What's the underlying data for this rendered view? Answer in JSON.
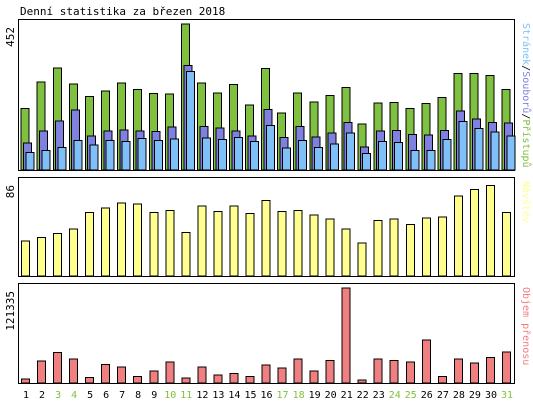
{
  "title": "Denní statistika za březen 2018",
  "colors": {
    "pristupy": "#80c040",
    "soubory": "#8080e0",
    "stranky": "#80c0f8",
    "navstevy": "#ffff90",
    "prenos": "#f08080",
    "weekend_day": "#80c040",
    "axis_text": "#000000",
    "frame": "#000000"
  },
  "chart_data": [
    {
      "type": "bar",
      "panel": "hits",
      "ylabel": "452",
      "ymax": 452,
      "legend": [
        {
          "name": "Stránek",
          "color": "#80c0f8"
        },
        {
          "name": "/",
          "color": "#000000"
        },
        {
          "name": "Souborů",
          "color": "#8080e0"
        },
        {
          "name": "/",
          "color": "#000000"
        },
        {
          "name": "Přístupů",
          "color": "#80c040"
        }
      ],
      "categories": [
        "1",
        "2",
        "3",
        "4",
        "5",
        "6",
        "7",
        "8",
        "9",
        "10",
        "11",
        "12",
        "13",
        "14",
        "15",
        "16",
        "17",
        "18",
        "19",
        "20",
        "21",
        "22",
        "23",
        "24",
        "25",
        "26",
        "27",
        "28",
        "29",
        "30",
        "31"
      ],
      "series": [
        {
          "name": "Přístupů",
          "values": [
            190,
            273,
            316,
            266,
            227,
            245,
            269,
            249,
            237,
            236,
            452,
            270,
            238,
            264,
            202,
            314,
            177,
            238,
            210,
            230,
            255,
            142,
            208,
            209,
            191,
            206,
            225,
            299,
            299,
            292,
            249
          ]
        },
        {
          "name": "Souborů",
          "values": [
            84,
            120,
            152,
            185,
            106,
            120,
            124,
            120,
            119,
            133,
            324,
            134,
            130,
            120,
            105,
            187,
            101,
            134,
            102,
            115,
            147,
            71,
            120,
            123,
            110,
            108,
            122,
            183,
            158,
            147,
            145
          ]
        },
        {
          "name": "Stránek",
          "values": [
            54,
            61,
            69,
            92,
            78,
            92,
            89,
            97,
            92,
            96,
            305,
            99,
            95,
            100,
            88,
            138,
            68,
            92,
            69,
            80,
            114,
            51,
            88,
            85,
            61,
            60,
            94,
            150,
            129,
            117,
            105
          ]
        }
      ]
    },
    {
      "type": "bar",
      "panel": "visits",
      "ylabel": "86",
      "ymax": 86,
      "legend": [
        {
          "name": "Návštěv",
          "color": "#ffff90"
        }
      ],
      "categories": [
        "1",
        "2",
        "3",
        "4",
        "5",
        "6",
        "7",
        "8",
        "9",
        "10",
        "11",
        "12",
        "13",
        "14",
        "15",
        "16",
        "17",
        "18",
        "19",
        "20",
        "21",
        "22",
        "23",
        "24",
        "25",
        "26",
        "27",
        "28",
        "29",
        "30",
        "31"
      ],
      "series": [
        {
          "name": "Návštěv",
          "values": [
            32,
            35,
            39,
            43,
            58,
            62,
            67,
            66,
            58,
            60,
            40,
            64,
            59,
            64,
            57,
            69,
            59,
            60,
            56,
            52,
            43,
            30,
            51,
            52,
            47,
            53,
            54,
            73,
            79,
            83,
            58
          ]
        }
      ]
    },
    {
      "type": "bar",
      "panel": "bytes",
      "ylabel": "121335",
      "ymax": 121335,
      "legend": [
        {
          "name": "Objem přenosu",
          "color": "#f08080"
        }
      ],
      "categories": [
        "1",
        "2",
        "3",
        "4",
        "5",
        "6",
        "7",
        "8",
        "9",
        "10",
        "11",
        "12",
        "13",
        "14",
        "15",
        "16",
        "17",
        "18",
        "19",
        "20",
        "21",
        "22",
        "23",
        "24",
        "25",
        "26",
        "27",
        "28",
        "29",
        "30",
        "31"
      ],
      "series": [
        {
          "name": "Objem přenosu",
          "values": [
            5300,
            28000,
            38700,
            30500,
            7300,
            23500,
            20500,
            8100,
            15100,
            26600,
            6100,
            20500,
            10200,
            12300,
            8300,
            23100,
            19100,
            30500,
            15100,
            28700,
            121335,
            3800,
            30500,
            29000,
            26700,
            55100,
            8600,
            30700,
            25600,
            32400,
            39400
          ]
        }
      ]
    }
  ],
  "weekend_days": [
    "3",
    "4",
    "10",
    "11",
    "17",
    "18",
    "24",
    "25",
    "31"
  ]
}
